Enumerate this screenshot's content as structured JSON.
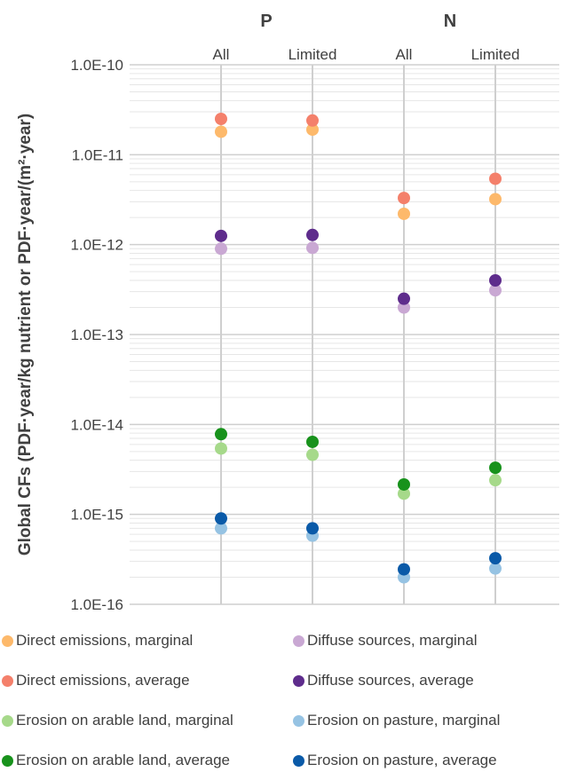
{
  "chart_data": {
    "type": "scatter",
    "yscale": "log",
    "ylim": [
      1e-16,
      1e-10
    ],
    "ylabel": "Global CFs (PDF·year/kg nutrient or PDF·year/(m²·year)",
    "xlabel": "",
    "title": "",
    "group_labels": [
      "P",
      "N"
    ],
    "categories": [
      "All",
      "Limited",
      "All",
      "Limited"
    ],
    "y_tick_labels": [
      "1.0E-10",
      "1.0E-11",
      "1.0E-12",
      "1.0E-13",
      "1.0E-14",
      "1.0E-15",
      "1.0E-16"
    ],
    "grid": true,
    "legend_position": "bottom",
    "series": [
      {
        "name": "Direct emissions, marginal",
        "color": "#FDB96B",
        "values": [
          1.8e-11,
          1.9e-11,
          2.2e-12,
          3.2e-12
        ]
      },
      {
        "name": "Direct emissions, average",
        "color": "#F4806B",
        "values": [
          2.5e-11,
          2.4e-11,
          3.3e-12,
          5.4e-12
        ]
      },
      {
        "name": "Erosion on arable land, marginal",
        "color": "#A6D98A",
        "values": [
          5.4e-15,
          4.6e-15,
          1.7e-15,
          2.4e-15
        ]
      },
      {
        "name": "Erosion on arable land, average",
        "color": "#18921C",
        "values": [
          7.8e-15,
          6.4e-15,
          2.15e-15,
          3.3e-15
        ]
      },
      {
        "name": "Diffuse sources, marginal",
        "color": "#C9A8D3",
        "values": [
          9e-13,
          9.2e-13,
          2e-13,
          3.1e-13
        ]
      },
      {
        "name": "Diffuse sources, average",
        "color": "#5E2C8C",
        "values": [
          1.25e-12,
          1.28e-12,
          2.5e-13,
          4e-13
        ]
      },
      {
        "name": "Erosion on pasture, marginal",
        "color": "#96C3E3",
        "values": [
          7e-16,
          5.8e-16,
          2e-16,
          2.5e-16
        ]
      },
      {
        "name": "Erosion on pasture, average",
        "color": "#0A5AA8",
        "values": [
          9e-16,
          7e-16,
          2.45e-16,
          3.25e-16
        ]
      }
    ]
  }
}
